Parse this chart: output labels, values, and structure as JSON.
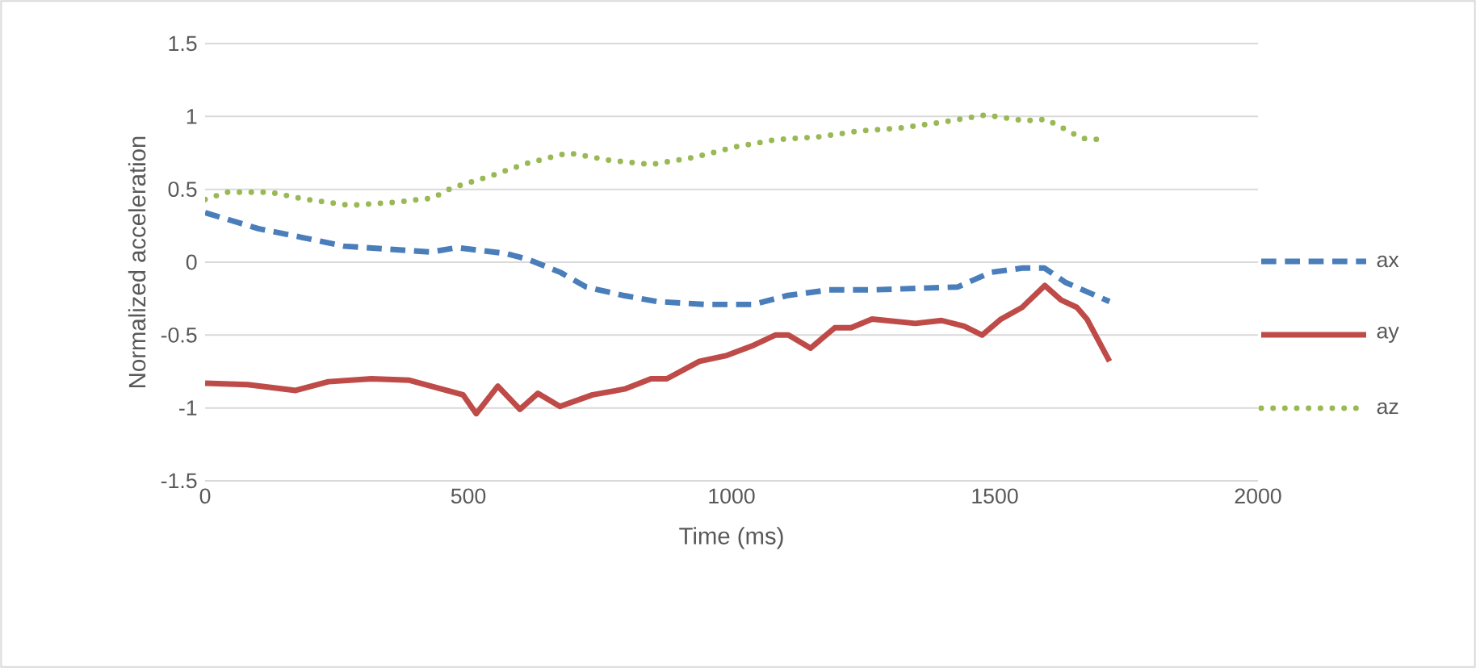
{
  "chart_data": {
    "type": "line",
    "xlabel": "Time (ms)",
    "ylabel": "Normalized acceleration",
    "xlim": [
      0,
      2000
    ],
    "xticks": [
      0,
      500,
      1000,
      1500,
      2000
    ],
    "ylim": [
      -1.5,
      1.5
    ],
    "yticks": [
      -1.5,
      -1,
      -0.5,
      0,
      0.5,
      1,
      1.5
    ],
    "grid": "y",
    "legend": "right",
    "series": [
      {
        "name": "ax",
        "color": "#4a7ebb",
        "line_style": "dashed",
        "x": [
          0,
          101,
          184,
          264,
          347,
          429,
          479,
          571,
          613,
          675,
          724,
          797,
          859,
          950,
          1042,
          1104,
          1185,
          1267,
          1349,
          1430,
          1492,
          1553,
          1594,
          1635,
          1718
        ],
        "values": [
          0.34,
          0.23,
          0.17,
          0.11,
          0.09,
          0.07,
          0.1,
          0.06,
          0.02,
          -0.07,
          -0.17,
          -0.23,
          -0.27,
          -0.29,
          -0.29,
          -0.23,
          -0.19,
          -0.19,
          -0.18,
          -0.17,
          -0.07,
          -0.04,
          -0.04,
          -0.14,
          -0.27
        ]
      },
      {
        "name": "ay",
        "color": "#be4b48",
        "line_style": "solid",
        "x": [
          0,
          81,
          172,
          234,
          316,
          388,
          439,
          490,
          515,
          556,
          598,
          632,
          674,
          736,
          797,
          847,
          877,
          939,
          991,
          1042,
          1083,
          1108,
          1150,
          1196,
          1227,
          1267,
          1349,
          1399,
          1442,
          1476,
          1512,
          1552,
          1595,
          1626,
          1656,
          1675,
          1718
        ],
        "values": [
          -0.83,
          -0.84,
          -0.88,
          -0.82,
          -0.8,
          -0.81,
          -0.86,
          -0.91,
          -1.04,
          -0.85,
          -1.01,
          -0.9,
          -0.99,
          -0.91,
          -0.87,
          -0.8,
          -0.8,
          -0.68,
          -0.64,
          -0.57,
          -0.5,
          -0.5,
          -0.59,
          -0.45,
          -0.45,
          -0.39,
          -0.42,
          -0.4,
          -0.44,
          -0.5,
          -0.39,
          -0.31,
          -0.16,
          -0.26,
          -0.31,
          -0.39,
          -0.68
        ]
      },
      {
        "name": "az",
        "color": "#98b954",
        "line_style": "dotted",
        "x": [
          0,
          41,
          123,
          193,
          275,
          357,
          432,
          469,
          541,
          613,
          690,
          767,
          847,
          930,
          1006,
          1083,
          1166,
          1242,
          1319,
          1399,
          1482,
          1558,
          1598,
          1666,
          1706
        ],
        "values": [
          0.43,
          0.48,
          0.48,
          0.43,
          0.39,
          0.41,
          0.44,
          0.51,
          0.59,
          0.68,
          0.75,
          0.7,
          0.67,
          0.72,
          0.79,
          0.84,
          0.86,
          0.9,
          0.92,
          0.96,
          1.01,
          0.97,
          0.98,
          0.85,
          0.84
        ]
      }
    ]
  }
}
